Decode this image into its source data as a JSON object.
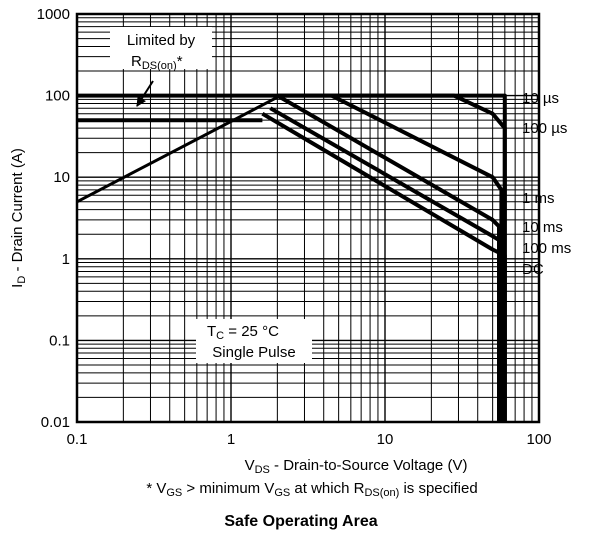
{
  "chart_data": {
    "type": "line",
    "title": "Safe Operating Area",
    "xlabel": {
      "prefix": "V",
      "sub": "DS",
      "rest": " - Drain-to-Source Voltage (V)"
    },
    "ylabel": {
      "prefix": "I",
      "sub": "D",
      "rest": " - Drain Current (A)"
    },
    "xscale": "log",
    "yscale": "log",
    "xlim": [
      0.1,
      100
    ],
    "ylim": [
      0.01,
      1000
    ],
    "grid": true,
    "x_ticks": [
      "0.1",
      "1",
      "10",
      "100"
    ],
    "y_ticks": [
      "0.01",
      "0.1",
      "1",
      "10",
      "100",
      "1000"
    ],
    "limit_label": {
      "line1": "Limited by",
      "line2_prefix": "R",
      "line2_sub": "DS(on)",
      "line2_suffix": "*"
    },
    "conditions": {
      "line1_prefix": "T",
      "line1_sub": "C",
      "line1_rest": " = 25 °C",
      "line2": "Single Pulse"
    },
    "footnote": {
      "parts": [
        "* V",
        "GS",
        " > minimum V",
        "GS",
        " at which R",
        "DS(on)",
        " is specified"
      ]
    },
    "series": [
      {
        "name": "10 µs",
        "points": [
          [
            2.0,
            100
          ],
          [
            28,
            100
          ],
          [
            50,
            60
          ],
          [
            60,
            40
          ],
          [
            60,
            0.01
          ]
        ]
      },
      {
        "name": "100 µs",
        "points": [
          [
            0.1,
            100
          ],
          [
            60,
            100
          ],
          [
            60,
            0.01
          ]
        ]
      },
      {
        "name": "1 ms",
        "points": [
          [
            4.5,
            100
          ],
          [
            50,
            10
          ],
          [
            57,
            7
          ],
          [
            57,
            0.01
          ]
        ]
      },
      {
        "name": "10 ms",
        "points": [
          [
            2.0,
            100
          ],
          [
            50,
            3
          ],
          [
            55,
            2.5
          ],
          [
            55,
            0.01
          ]
        ]
      },
      {
        "name": "100 ms",
        "points": [
          [
            1.8,
            70
          ],
          [
            50,
            1.9
          ],
          [
            58,
            1.6
          ],
          [
            58,
            0.01
          ]
        ]
      },
      {
        "name": "DC",
        "points": [
          [
            1.6,
            60
          ],
          [
            50,
            1.3
          ],
          [
            60,
            1.1
          ],
          [
            60,
            0.01
          ]
        ]
      }
    ],
    "rds_limit_line": [
      [
        0.1,
        5
      ],
      [
        2.1,
        100
      ]
    ],
    "current_limit_line": [
      [
        0.1,
        50
      ],
      [
        1.6,
        50
      ]
    ]
  }
}
